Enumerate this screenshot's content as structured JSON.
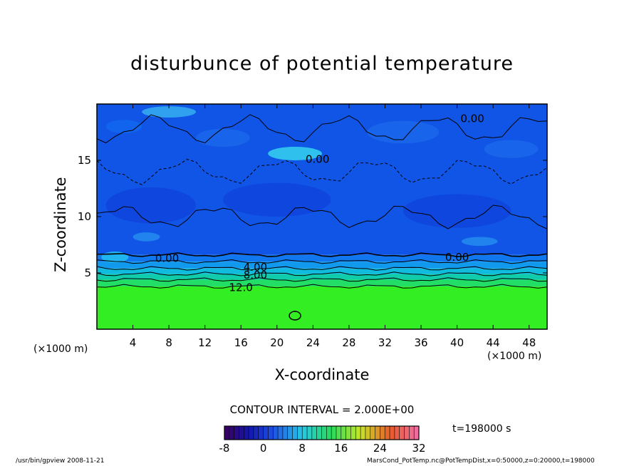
{
  "chart_data": {
    "type": "heatmap",
    "title": "disturbunce of potential temperature",
    "xlabel": "X-coordinate",
    "ylabel": "Z-coordinate",
    "x_unit_left": "(×1000 m)",
    "x_unit_right": "(×1000 m)",
    "xlim": [
      0,
      50
    ],
    "ylim": [
      0,
      20
    ],
    "x_ticks": [
      4,
      8,
      12,
      16,
      20,
      24,
      28,
      32,
      36,
      40,
      44,
      48
    ],
    "y_ticks": [
      5,
      10,
      15
    ],
    "layers": [
      {
        "z_from": 0,
        "z_to": 3.8,
        "color": "#33ee22"
      },
      {
        "z_from": 3.8,
        "z_to": 4.4,
        "color": "#22dd66"
      },
      {
        "z_from": 4.4,
        "z_to": 4.9,
        "color": "#11ccaa"
      },
      {
        "z_from": 4.9,
        "z_to": 5.4,
        "color": "#11bbdd"
      },
      {
        "z_from": 5.4,
        "z_to": 6.0,
        "color": "#1199ee"
      },
      {
        "z_from": 6.0,
        "z_to": 6.6,
        "color": "#1177ee"
      },
      {
        "z_from": 6.6,
        "z_to": 20,
        "color": "#1155e6"
      }
    ],
    "contour_labels": [
      {
        "text": "0.00",
        "x": 7.8,
        "z": 6.3
      },
      {
        "text": "0.00",
        "x": 40.0,
        "z": 6.4
      },
      {
        "text": "4.00",
        "x": 17.6,
        "z": 5.5
      },
      {
        "text": "8.00",
        "x": 17.6,
        "z": 4.8
      },
      {
        "text": "12.0",
        "x": 16.0,
        "z": 3.7
      },
      {
        "text": "0.00",
        "x": 24.5,
        "z": 15.1
      },
      {
        "text": "0.00",
        "x": 41.7,
        "z": 18.7
      }
    ],
    "colorbar": {
      "ticks": [
        -8,
        0,
        8,
        16,
        24,
        32
      ],
      "range": [
        -8,
        32
      ]
    }
  },
  "contour_interval": "CONTOUR INTERVAL = 2.000E+00",
  "time_label": "t=198000 s",
  "footer_left": "/usr/bin/gpview   2008-11-21",
  "footer_right": "MarsCond_PotTemp.nc@PotTempDist,x=0:50000,z=0:20000,t=198000"
}
